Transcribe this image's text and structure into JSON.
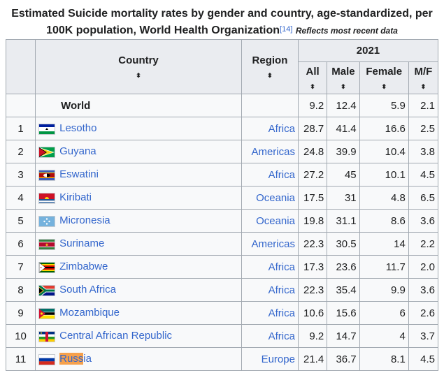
{
  "caption": {
    "title": "Estimated Suicide mortality rates by gender and country, age-standardized, per 100K population, World Health Organization",
    "ref": "[14]",
    "note": "Reflects most recent data"
  },
  "headers": {
    "country": "Country",
    "region": "Region",
    "year": "2021",
    "all": "All",
    "male": "Male",
    "female": "Female",
    "mf": "M/F",
    "sort_icon": "⬍"
  },
  "world": {
    "name": "World",
    "all": "9.2",
    "male": "12.4",
    "female": "5.9",
    "mf": "2.1"
  },
  "rows": [
    {
      "rank": "1",
      "flag": "lesotho",
      "country": "Lesotho",
      "region": "Africa",
      "all": "28.7",
      "male": "41.4",
      "female": "16.6",
      "mf": "2.5"
    },
    {
      "rank": "2",
      "flag": "guyana",
      "country": "Guyana",
      "region": "Americas",
      "all": "24.8",
      "male": "39.9",
      "female": "10.4",
      "mf": "3.8"
    },
    {
      "rank": "3",
      "flag": "eswatini",
      "country": "Eswatini",
      "region": "Africa",
      "all": "27.2",
      "male": "45",
      "female": "10.1",
      "mf": "4.5"
    },
    {
      "rank": "4",
      "flag": "kiribati",
      "country": "Kiribati",
      "region": "Oceania",
      "all": "17.5",
      "male": "31",
      "female": "4.8",
      "mf": "6.5"
    },
    {
      "rank": "5",
      "flag": "micronesia",
      "country": "Micronesia",
      "region": "Oceania",
      "all": "19.8",
      "male": "31.1",
      "female": "8.6",
      "mf": "3.6"
    },
    {
      "rank": "6",
      "flag": "suriname",
      "country": "Suriname",
      "region": "Americas",
      "all": "22.3",
      "male": "30.5",
      "female": "14",
      "mf": "2.2"
    },
    {
      "rank": "7",
      "flag": "zimbabwe",
      "country": "Zimbabwe",
      "region": "Africa",
      "all": "17.3",
      "male": "23.6",
      "female": "11.7",
      "mf": "2.0"
    },
    {
      "rank": "8",
      "flag": "south-africa",
      "country": "South Africa",
      "region": "Africa",
      "all": "22.3",
      "male": "35.4",
      "female": "9.9",
      "mf": "3.6"
    },
    {
      "rank": "9",
      "flag": "mozambique",
      "country": "Mozambique",
      "region": "Africa",
      "all": "10.6",
      "male": "15.6",
      "female": "6",
      "mf": "2.6"
    },
    {
      "rank": "10",
      "flag": "central-african-republic",
      "country": "Central African Republic",
      "region": "Africa",
      "all": "9.2",
      "male": "14.7",
      "female": "4",
      "mf": "3.7"
    },
    {
      "rank": "11",
      "flag": "russia",
      "country_hl": "Russ",
      "country_rest": "ia",
      "region": "Europe",
      "all": "21.4",
      "male": "36.7",
      "female": "8.1",
      "mf": "4.5"
    }
  ],
  "colors": {
    "link": "#3366cc",
    "header_bg": "#eaecf0",
    "border": "#a2a9b1",
    "highlight": "#f5a04c"
  }
}
